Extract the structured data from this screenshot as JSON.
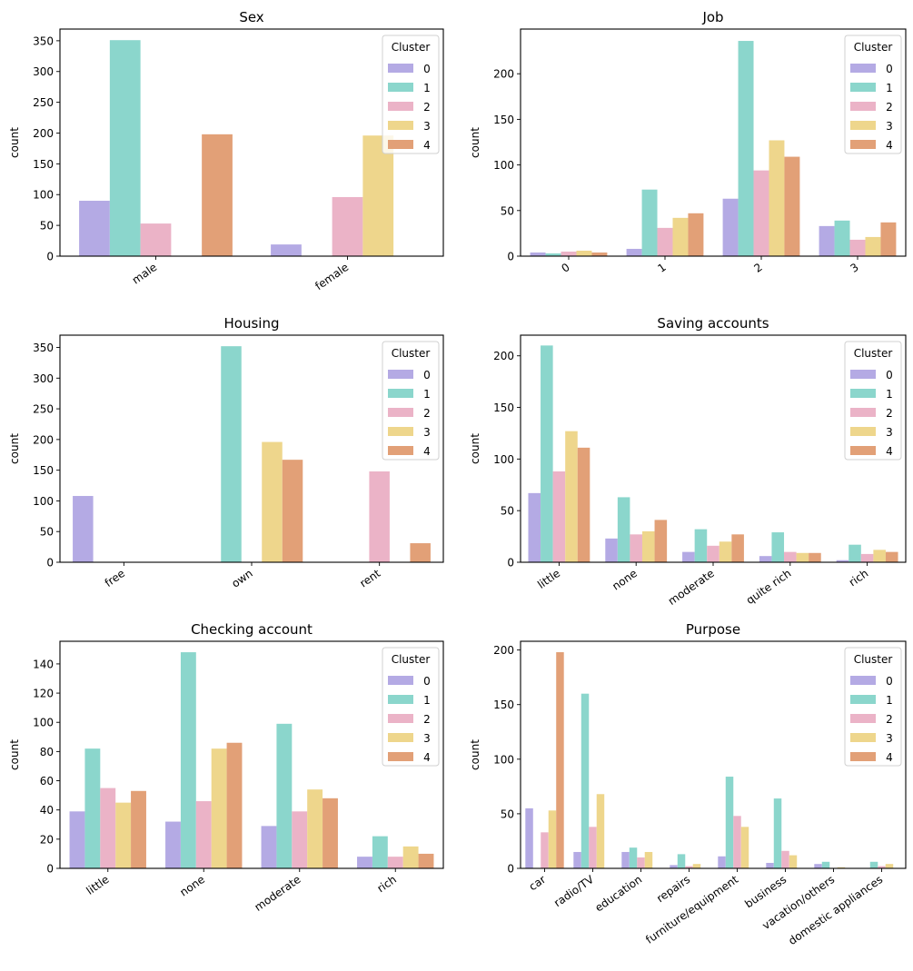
{
  "figure": {
    "legend_title": "Cluster",
    "cluster_labels": [
      "0",
      "1",
      "2",
      "3",
      "4"
    ],
    "cluster_colors": [
      "#b4aae4",
      "#8bd6cc",
      "#ebb3c7",
      "#eed68c",
      "#e2a077"
    ]
  },
  "chart_data": [
    {
      "type": "bar",
      "title": "Sex",
      "xlabel": "",
      "ylabel": "count",
      "ylim": [
        0,
        369
      ],
      "yticks": [
        0,
        50,
        100,
        150,
        200,
        250,
        300,
        350
      ],
      "legend": "top-right",
      "grid": false,
      "categories": [
        "male",
        "female"
      ],
      "series": [
        {
          "name": "0",
          "values": [
            90,
            19
          ]
        },
        {
          "name": "1",
          "values": [
            351,
            0
          ]
        },
        {
          "name": "2",
          "values": [
            53,
            96
          ]
        },
        {
          "name": "3",
          "values": [
            0,
            196
          ]
        },
        {
          "name": "4",
          "values": [
            198,
            0
          ]
        }
      ]
    },
    {
      "type": "bar",
      "title": "Job",
      "xlabel": "",
      "ylabel": "count",
      "ylim": [
        0,
        249
      ],
      "yticks": [
        0,
        50,
        100,
        150,
        200
      ],
      "legend": "top-right",
      "grid": false,
      "categories": [
        "0",
        "1",
        "2",
        "3"
      ],
      "series": [
        {
          "name": "0",
          "values": [
            4,
            8,
            63,
            33
          ]
        },
        {
          "name": "1",
          "values": [
            3,
            73,
            236,
            39
          ]
        },
        {
          "name": "2",
          "values": [
            5,
            31,
            94,
            18
          ]
        },
        {
          "name": "3",
          "values": [
            6,
            42,
            127,
            21
          ]
        },
        {
          "name": "4",
          "values": [
            4,
            47,
            109,
            37
          ]
        }
      ]
    },
    {
      "type": "bar",
      "title": "Housing",
      "xlabel": "",
      "ylabel": "count",
      "ylim": [
        0,
        370
      ],
      "yticks": [
        0,
        50,
        100,
        150,
        200,
        250,
        300,
        350
      ],
      "legend": "top-right",
      "grid": false,
      "categories": [
        "free",
        "own",
        "rent"
      ],
      "series": [
        {
          "name": "0",
          "values": [
            108,
            0,
            0
          ]
        },
        {
          "name": "1",
          "values": [
            0,
            352,
            0
          ]
        },
        {
          "name": "2",
          "values": [
            0,
            0,
            148
          ]
        },
        {
          "name": "3",
          "values": [
            0,
            196,
            0
          ]
        },
        {
          "name": "4",
          "values": [
            0,
            167,
            31
          ]
        }
      ]
    },
    {
      "type": "bar",
      "title": "Saving accounts",
      "xlabel": "",
      "ylabel": "count",
      "ylim": [
        0,
        220
      ],
      "yticks": [
        0,
        50,
        100,
        150,
        200
      ],
      "legend": "top-right",
      "grid": false,
      "categories": [
        "little",
        "none",
        "moderate",
        "quite rich",
        "rich"
      ],
      "series": [
        {
          "name": "0",
          "values": [
            67,
            23,
            10,
            6,
            2
          ]
        },
        {
          "name": "1",
          "values": [
            210,
            63,
            32,
            29,
            17
          ]
        },
        {
          "name": "2",
          "values": [
            88,
            27,
            16,
            10,
            8
          ]
        },
        {
          "name": "3",
          "values": [
            127,
            30,
            20,
            9,
            12
          ]
        },
        {
          "name": "4",
          "values": [
            111,
            41,
            27,
            9,
            10
          ]
        }
      ]
    },
    {
      "type": "bar",
      "title": "Checking account",
      "xlabel": "",
      "ylabel": "count",
      "ylim": [
        0,
        155.5
      ],
      "yticks": [
        0,
        20,
        40,
        60,
        80,
        100,
        120,
        140
      ],
      "legend": "top-right",
      "grid": false,
      "categories": [
        "little",
        "none",
        "moderate",
        "rich"
      ],
      "series": [
        {
          "name": "0",
          "values": [
            39,
            32,
            29,
            8
          ]
        },
        {
          "name": "1",
          "values": [
            82,
            148,
            99,
            22
          ]
        },
        {
          "name": "2",
          "values": [
            55,
            46,
            39,
            8
          ]
        },
        {
          "name": "3",
          "values": [
            45,
            82,
            54,
            15
          ]
        },
        {
          "name": "4",
          "values": [
            53,
            86,
            48,
            10
          ]
        }
      ]
    },
    {
      "type": "bar",
      "title": "Purpose",
      "xlabel": "",
      "ylabel": "count",
      "ylim": [
        0,
        208
      ],
      "yticks": [
        0,
        50,
        100,
        150,
        200
      ],
      "legend": "top-right",
      "grid": false,
      "categories": [
        "car",
        "radio/TV",
        "education",
        "repairs",
        "furniture/equipment",
        "business",
        "vacation/others",
        "domestic appliances"
      ],
      "series": [
        {
          "name": "0",
          "values": [
            55,
            15,
            15,
            3,
            11,
            5,
            4,
            0
          ]
        },
        {
          "name": "1",
          "values": [
            0,
            160,
            19,
            13,
            84,
            64,
            6,
            6
          ]
        },
        {
          "name": "2",
          "values": [
            33,
            38,
            10,
            2,
            48,
            16,
            0,
            2
          ]
        },
        {
          "name": "3",
          "values": [
            53,
            68,
            15,
            4,
            38,
            12,
            1,
            4
          ]
        },
        {
          "name": "4",
          "values": [
            198,
            0,
            0,
            0,
            0,
            0,
            0,
            0
          ]
        }
      ]
    }
  ]
}
